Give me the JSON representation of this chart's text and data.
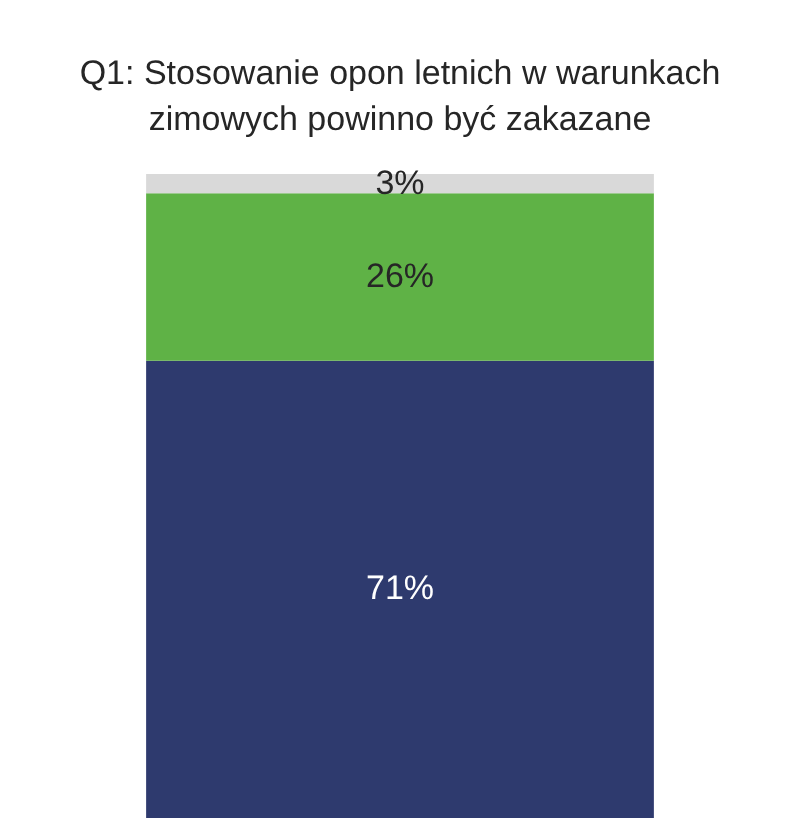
{
  "chart_data": {
    "type": "bar",
    "title": "Q1: Stosowanie opon letnich w warunkach zimowych powinno być zakazane",
    "stacked": true,
    "categories": [
      null
    ],
    "series": [
      {
        "color": "#2e3a6e",
        "values": [
          71
        ],
        "value_labels": [
          "71%"
        ]
      },
      {
        "color": "#5fb246",
        "values": [
          26
        ],
        "value_labels": [
          "26%"
        ]
      },
      {
        "color": "#d9d9d9",
        "values": [
          3
        ],
        "value_labels": [
          "3%"
        ]
      }
    ]
  }
}
